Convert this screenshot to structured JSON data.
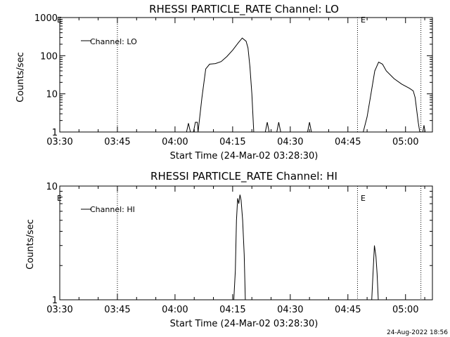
{
  "chart_data": [
    {
      "type": "line",
      "title": "RHESSI PARTICLE_RATE Channel: LO",
      "xlabel": "Start Time (24-Mar-02 03:28:30)",
      "ylabel": "Counts/sec",
      "y_scale": "log",
      "ylim": [
        1,
        1000
      ],
      "yticks": [
        1,
        10,
        100,
        1000
      ],
      "ytick_labels": [
        "1",
        "10",
        "100",
        "1000"
      ],
      "xlim_minutes": [
        210,
        307
      ],
      "xticks": [
        210,
        225,
        240,
        255,
        270,
        285,
        300
      ],
      "xtick_labels": [
        "03:30",
        "03:45",
        "04:00",
        "04:15",
        "04:30",
        "04:45",
        "05:00"
      ],
      "legend": {
        "label": "Channel: LO",
        "position": "top-left"
      },
      "markers": [
        {
          "x": 225,
          "label": ""
        },
        {
          "x": 287.5,
          "label": "E"
        },
        {
          "x": 304,
          "label": ""
        }
      ],
      "corner_label": "E",
      "series": [
        {
          "name": "Channel: LO",
          "points": [
            [
              210,
              1
            ],
            [
              243,
              1
            ],
            [
              243.5,
              1.7
            ],
            [
              244,
              1
            ],
            [
              244.8,
              1
            ],
            [
              245.3,
              1.8
            ],
            [
              245.8,
              1.8
            ],
            [
              246,
              1
            ],
            [
              247,
              8
            ],
            [
              248,
              45
            ],
            [
              249,
              60
            ],
            [
              250.5,
              62
            ],
            [
              252,
              70
            ],
            [
              253.5,
              95
            ],
            [
              255,
              140
            ],
            [
              256.5,
              220
            ],
            [
              257.5,
              290
            ],
            [
              258.5,
              240
            ],
            [
              259,
              160
            ],
            [
              259.5,
              50
            ],
            [
              260,
              10
            ],
            [
              260.5,
              1
            ],
            [
              263.5,
              1
            ],
            [
              264,
              1.8
            ],
            [
              264.5,
              1
            ],
            [
              266.5,
              1
            ],
            [
              267,
              1.8
            ],
            [
              267.5,
              1
            ],
            [
              274.5,
              1
            ],
            [
              275,
              1.8
            ],
            [
              275.5,
              1
            ],
            [
              289,
              1
            ],
            [
              290,
              2.5
            ],
            [
              291,
              10
            ],
            [
              292,
              40
            ],
            [
              293,
              68
            ],
            [
              294,
              60
            ],
            [
              295,
              40
            ],
            [
              297,
              25
            ],
            [
              299,
              18
            ],
            [
              301,
              14
            ],
            [
              302,
              12
            ],
            [
              302.5,
              8
            ],
            [
              303.3,
              1.8
            ],
            [
              303.7,
              1
            ],
            [
              304.5,
              1
            ],
            [
              304.8,
              1.5
            ],
            [
              305.1,
              1
            ],
            [
              307,
              1
            ]
          ]
        }
      ]
    },
    {
      "type": "line",
      "title": "RHESSI PARTICLE_RATE Channel: HI",
      "xlabel": "Start Time (24-Mar-02 03:28:30)",
      "ylabel": "Counts/sec",
      "y_scale": "log",
      "ylim": [
        1,
        10
      ],
      "yticks": [
        1,
        10
      ],
      "ytick_labels": [
        "1",
        "10"
      ],
      "xlim_minutes": [
        210,
        307
      ],
      "xticks": [
        210,
        225,
        240,
        255,
        270,
        285,
        300
      ],
      "xtick_labels": [
        "03:30",
        "03:45",
        "04:00",
        "04:15",
        "04:30",
        "04:45",
        "05:00"
      ],
      "legend": {
        "label": "Channel: HI",
        "position": "top-left"
      },
      "markers": [
        {
          "x": 225,
          "label": ""
        },
        {
          "x": 287.5,
          "label": "E"
        },
        {
          "x": 304,
          "label": ""
        }
      ],
      "corner_label": "E",
      "series": [
        {
          "name": "Channel: HI",
          "points": [
            [
              210,
              1
            ],
            [
              255.3,
              1
            ],
            [
              255.7,
              1.8
            ],
            [
              256,
              5
            ],
            [
              256.3,
              7.8
            ],
            [
              256.6,
              7
            ],
            [
              256.9,
              8.4
            ],
            [
              257.2,
              7.5
            ],
            [
              257.6,
              5
            ],
            [
              258,
              2.5
            ],
            [
              258.3,
              1
            ],
            [
              291.2,
              1
            ],
            [
              291.5,
              1.6
            ],
            [
              291.9,
              3
            ],
            [
              292.3,
              2.4
            ],
            [
              292.6,
              1.7
            ],
            [
              292.9,
              1
            ],
            [
              307,
              1
            ]
          ]
        }
      ]
    }
  ],
  "timestamp": "24-Aug-2022 18:56"
}
